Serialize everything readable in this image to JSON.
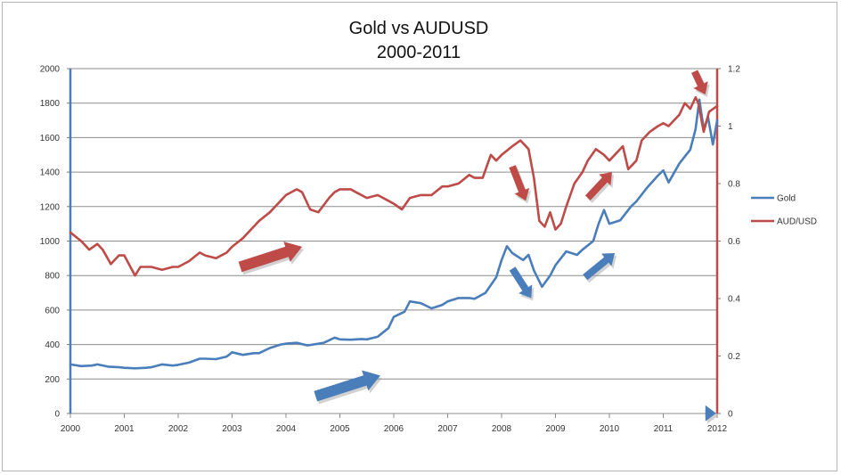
{
  "chart_data": {
    "type": "line",
    "title_lines": [
      "Gold vs AUDUSD",
      "2000-2011"
    ],
    "x_ticks": [
      "2000",
      "2001",
      "2002",
      "2003",
      "2004",
      "2005",
      "2006",
      "2007",
      "2008",
      "2009",
      "2010",
      "2011",
      "2012"
    ],
    "xlim": [
      2000,
      2012
    ],
    "y_left": {
      "lim": [
        0,
        2000
      ],
      "ticks": [
        "0",
        "200",
        "400",
        "600",
        "800",
        "1000",
        "1200",
        "1400",
        "1600",
        "1800",
        "2000"
      ]
    },
    "y_right": {
      "lim": [
        0,
        1.2
      ],
      "ticks": [
        "0",
        "0.2",
        "0.4",
        "0.6",
        "0.8",
        "1",
        "1.2"
      ]
    },
    "grid": true,
    "legend_position": "right",
    "series": [
      {
        "name": "Gold",
        "axis": "left",
        "color": "#4a7ebb",
        "points": [
          [
            2000.0,
            285
          ],
          [
            2000.2,
            275
          ],
          [
            2000.4,
            278
          ],
          [
            2000.5,
            285
          ],
          [
            2000.7,
            272
          ],
          [
            2000.9,
            268
          ],
          [
            2001.0,
            265
          ],
          [
            2001.2,
            262
          ],
          [
            2001.4,
            265
          ],
          [
            2001.5,
            268
          ],
          [
            2001.7,
            285
          ],
          [
            2001.9,
            278
          ],
          [
            2002.0,
            282
          ],
          [
            2002.2,
            295
          ],
          [
            2002.4,
            318
          ],
          [
            2002.5,
            318
          ],
          [
            2002.7,
            315
          ],
          [
            2002.9,
            330
          ],
          [
            2003.0,
            355
          ],
          [
            2003.2,
            340
          ],
          [
            2003.4,
            350
          ],
          [
            2003.5,
            350
          ],
          [
            2003.7,
            380
          ],
          [
            2003.9,
            400
          ],
          [
            2004.0,
            405
          ],
          [
            2004.2,
            410
          ],
          [
            2004.4,
            395
          ],
          [
            2004.5,
            400
          ],
          [
            2004.7,
            410
          ],
          [
            2004.9,
            440
          ],
          [
            2005.0,
            430
          ],
          [
            2005.2,
            428
          ],
          [
            2005.4,
            432
          ],
          [
            2005.5,
            430
          ],
          [
            2005.7,
            445
          ],
          [
            2005.9,
            495
          ],
          [
            2006.0,
            560
          ],
          [
            2006.2,
            590
          ],
          [
            2006.3,
            650
          ],
          [
            2006.5,
            640
          ],
          [
            2006.7,
            610
          ],
          [
            2006.9,
            630
          ],
          [
            2007.0,
            650
          ],
          [
            2007.2,
            670
          ],
          [
            2007.4,
            670
          ],
          [
            2007.5,
            665
          ],
          [
            2007.7,
            700
          ],
          [
            2007.9,
            790
          ],
          [
            2008.0,
            890
          ],
          [
            2008.1,
            970
          ],
          [
            2008.2,
            930
          ],
          [
            2008.4,
            890
          ],
          [
            2008.5,
            920
          ],
          [
            2008.6,
            830
          ],
          [
            2008.75,
            735
          ],
          [
            2008.9,
            800
          ],
          [
            2009.0,
            860
          ],
          [
            2009.2,
            940
          ],
          [
            2009.4,
            920
          ],
          [
            2009.5,
            950
          ],
          [
            2009.7,
            1000
          ],
          [
            2009.8,
            1100
          ],
          [
            2009.9,
            1180
          ],
          [
            2010.0,
            1100
          ],
          [
            2010.2,
            1120
          ],
          [
            2010.4,
            1200
          ],
          [
            2010.5,
            1230
          ],
          [
            2010.7,
            1310
          ],
          [
            2010.9,
            1380
          ],
          [
            2011.0,
            1410
          ],
          [
            2011.1,
            1340
          ],
          [
            2011.3,
            1450
          ],
          [
            2011.5,
            1530
          ],
          [
            2011.6,
            1650
          ],
          [
            2011.67,
            1820
          ],
          [
            2011.75,
            1650
          ],
          [
            2011.83,
            1720
          ],
          [
            2011.92,
            1560
          ],
          [
            2012.0,
            1700
          ]
        ]
      },
      {
        "name": "AUD/USD",
        "axis": "right",
        "color": "#be4b48",
        "points": [
          [
            2000.0,
            0.63
          ],
          [
            2000.2,
            0.6
          ],
          [
            2000.35,
            0.57
          ],
          [
            2000.5,
            0.59
          ],
          [
            2000.6,
            0.57
          ],
          [
            2000.75,
            0.52
          ],
          [
            2000.9,
            0.55
          ],
          [
            2001.0,
            0.55
          ],
          [
            2001.2,
            0.48
          ],
          [
            2001.3,
            0.51
          ],
          [
            2001.5,
            0.51
          ],
          [
            2001.7,
            0.5
          ],
          [
            2001.9,
            0.51
          ],
          [
            2002.0,
            0.51
          ],
          [
            2002.2,
            0.53
          ],
          [
            2002.4,
            0.56
          ],
          [
            2002.5,
            0.55
          ],
          [
            2002.7,
            0.54
          ],
          [
            2002.9,
            0.56
          ],
          [
            2003.0,
            0.58
          ],
          [
            2003.2,
            0.61
          ],
          [
            2003.4,
            0.65
          ],
          [
            2003.5,
            0.67
          ],
          [
            2003.7,
            0.7
          ],
          [
            2003.9,
            0.74
          ],
          [
            2004.0,
            0.76
          ],
          [
            2004.2,
            0.78
          ],
          [
            2004.3,
            0.77
          ],
          [
            2004.45,
            0.71
          ],
          [
            2004.6,
            0.7
          ],
          [
            2004.8,
            0.75
          ],
          [
            2004.9,
            0.77
          ],
          [
            2005.0,
            0.78
          ],
          [
            2005.2,
            0.78
          ],
          [
            2005.3,
            0.77
          ],
          [
            2005.5,
            0.75
          ],
          [
            2005.7,
            0.76
          ],
          [
            2005.9,
            0.74
          ],
          [
            2006.0,
            0.73
          ],
          [
            2006.15,
            0.71
          ],
          [
            2006.3,
            0.75
          ],
          [
            2006.5,
            0.76
          ],
          [
            2006.7,
            0.76
          ],
          [
            2006.9,
            0.79
          ],
          [
            2007.0,
            0.79
          ],
          [
            2007.2,
            0.8
          ],
          [
            2007.4,
            0.83
          ],
          [
            2007.5,
            0.82
          ],
          [
            2007.65,
            0.82
          ],
          [
            2007.8,
            0.9
          ],
          [
            2007.9,
            0.88
          ],
          [
            2008.0,
            0.9
          ],
          [
            2008.2,
            0.93
          ],
          [
            2008.35,
            0.95
          ],
          [
            2008.5,
            0.92
          ],
          [
            2008.6,
            0.82
          ],
          [
            2008.7,
            0.67
          ],
          [
            2008.8,
            0.65
          ],
          [
            2008.9,
            0.7
          ],
          [
            2009.0,
            0.64
          ],
          [
            2009.1,
            0.66
          ],
          [
            2009.2,
            0.72
          ],
          [
            2009.35,
            0.8
          ],
          [
            2009.5,
            0.84
          ],
          [
            2009.6,
            0.88
          ],
          [
            2009.75,
            0.92
          ],
          [
            2009.9,
            0.9
          ],
          [
            2010.0,
            0.88
          ],
          [
            2010.1,
            0.9
          ],
          [
            2010.25,
            0.93
          ],
          [
            2010.35,
            0.85
          ],
          [
            2010.5,
            0.88
          ],
          [
            2010.6,
            0.95
          ],
          [
            2010.75,
            0.98
          ],
          [
            2010.9,
            1.0
          ],
          [
            2011.0,
            1.01
          ],
          [
            2011.1,
            1.0
          ],
          [
            2011.3,
            1.04
          ],
          [
            2011.4,
            1.08
          ],
          [
            2011.5,
            1.06
          ],
          [
            2011.6,
            1.1
          ],
          [
            2011.65,
            1.08
          ],
          [
            2011.75,
            0.98
          ],
          [
            2011.85,
            1.05
          ],
          [
            2012.0,
            1.07
          ]
        ]
      }
    ]
  },
  "legend": [
    {
      "label": "Gold",
      "color": "#4a7ebb"
    },
    {
      "label": "AUD/USD",
      "color": "#be4b48"
    }
  ],
  "annotations": [
    {
      "name": "red-arrow-2004",
      "color": "#be4b48",
      "from": [
        2003.15,
        0.51
      ],
      "to": [
        2004.3,
        0.58
      ]
    },
    {
      "name": "blue-arrow-2005",
      "color": "#4a7ebb",
      "from": [
        2004.55,
        100
      ],
      "to": [
        2005.75,
        220
      ]
    },
    {
      "name": "red-arrow-2008-down",
      "color": "#be4b48",
      "from": [
        2008.2,
        0.86
      ],
      "to": [
        2008.45,
        0.74
      ]
    },
    {
      "name": "blue-arrow-2008-down",
      "color": "#4a7ebb",
      "from": [
        2008.2,
        840
      ],
      "to": [
        2008.55,
        670
      ]
    },
    {
      "name": "red-arrow-2010-up",
      "color": "#be4b48",
      "from": [
        2009.6,
        0.75
      ],
      "to": [
        2010.05,
        0.84
      ]
    },
    {
      "name": "blue-arrow-2010-up",
      "color": "#4a7ebb",
      "from": [
        2009.55,
        790
      ],
      "to": [
        2010.1,
        930
      ]
    },
    {
      "name": "red-arrow-2011-top",
      "color": "#be4b48",
      "from": [
        2011.58,
        1.19
      ],
      "to": [
        2011.78,
        1.11
      ]
    },
    {
      "name": "blue-arrow-2011-top",
      "color": "#4a7ebb",
      "from": [
        2011.78,
        1.19
      ],
      "to": [
        2011.98,
        1.1
      ]
    }
  ]
}
